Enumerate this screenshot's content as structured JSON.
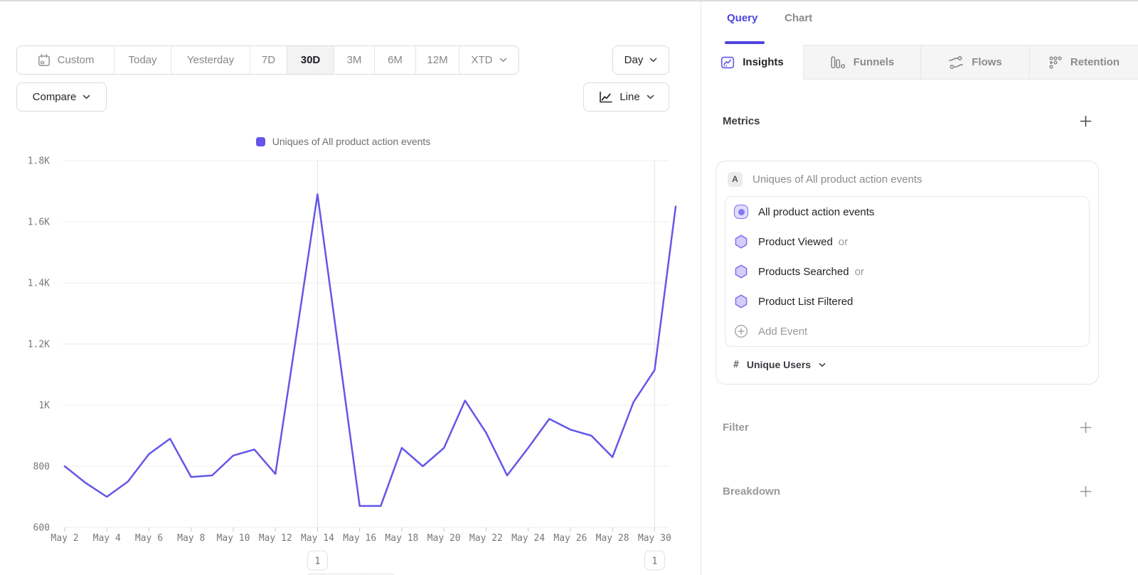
{
  "toolbar": {
    "ranges": [
      "Custom",
      "Today",
      "Yesterday",
      "7D",
      "30D",
      "3M",
      "6M",
      "12M",
      "XTD"
    ],
    "selected_range": "30D",
    "granularity": "Day",
    "compare": "Compare",
    "chart_type": "Line"
  },
  "panel": {
    "tabs": [
      "Query",
      "Chart"
    ],
    "active_tab": "Query",
    "view_tabs": [
      "Insights",
      "Funnels",
      "Flows",
      "Retention"
    ],
    "active_view_tab": "Insights",
    "metrics_title": "Metrics",
    "filter_title": "Filter",
    "breakdown_title": "Breakdown"
  },
  "metric": {
    "badge": "A",
    "title": "Uniques of All product action events",
    "events": [
      {
        "name": "All product action events"
      },
      {
        "name": "Product Viewed",
        "conjunction": "or"
      },
      {
        "name": "Products Searched",
        "conjunction": "or"
      },
      {
        "name": "Product List Filtered"
      }
    ],
    "add_event_label": "Add Event",
    "measurement_prefix": "#",
    "measurement": "Unique Users"
  },
  "chart_data": {
    "type": "line",
    "legend": "Uniques of All product action events",
    "x": [
      "May 2",
      "May 3",
      "May 4",
      "May 5",
      "May 6",
      "May 7",
      "May 8",
      "May 9",
      "May 10",
      "May 11",
      "May 12",
      "May 13",
      "May 14",
      "May 15",
      "May 16",
      "May 17",
      "May 18",
      "May 19",
      "May 20",
      "May 21",
      "May 22",
      "May 23",
      "May 24",
      "May 25",
      "May 26",
      "May 27",
      "May 28",
      "May 29",
      "May 30",
      "May 31"
    ],
    "values": [
      800,
      745,
      700,
      750,
      840,
      890,
      765,
      770,
      835,
      855,
      775,
      1230,
      1690,
      1180,
      670,
      670,
      860,
      800,
      860,
      1015,
      910,
      770,
      860,
      955,
      920,
      900,
      830,
      1010,
      1115,
      1650
    ],
    "ylim": [
      600,
      1800
    ],
    "yticks": [
      {
        "label": "600",
        "value": 600
      },
      {
        "label": "800",
        "value": 800
      },
      {
        "label": "1K",
        "value": 1000
      },
      {
        "label": "1.2K",
        "value": 1200
      },
      {
        "label": "1.4K",
        "value": 1400
      },
      {
        "label": "1.6K",
        "value": 1600
      },
      {
        "label": "1.8K",
        "value": 1800
      }
    ],
    "xticks": [
      "May 2",
      "May 4",
      "May 6",
      "May 8",
      "May 10",
      "May 12",
      "May 14",
      "May 16",
      "May 18",
      "May 20",
      "May 22",
      "May 24",
      "May 26",
      "May 28",
      "May 30"
    ],
    "annotations": [
      {
        "x": "May 14",
        "label": "1"
      },
      {
        "x": "May 30",
        "label": "1"
      }
    ],
    "line_color": "#6456e8",
    "grid": true,
    "legend_position": "top-center"
  }
}
